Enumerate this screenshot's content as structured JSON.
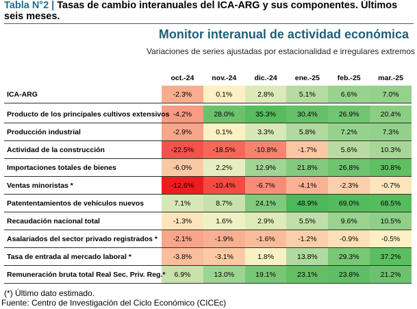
{
  "caption": {
    "label": "Tabla N°2 |",
    "text": "Tasas de cambio interanuales del ICA-ARG y sus componentes. Últimos seis meses."
  },
  "monitor_title": "Monitor interanual de actividad económica",
  "subtitle": "Variaciones de series ajustadas por estacionalidad e irregulares extremos",
  "columns": [
    "oct.-24",
    "nov.-24",
    "dic.-24",
    "ene.-25",
    "feb.-25",
    "mar.-25"
  ],
  "rows": [
    {
      "label": "ICA-ARG",
      "values": [
        "-2.3%",
        "0.1%",
        "2.8%",
        "5.1%",
        "6.6%",
        "7.0%"
      ],
      "colors": [
        "#f8ad8f",
        "#fdf0c4",
        "#dce9b9",
        "#b6dba0",
        "#98d38e",
        "#94d18b"
      ]
    },
    {
      "label": "Producto de los principales cultivos extensivos",
      "values": [
        "-4.2%",
        "28.0%",
        "35.3%",
        "30.4%",
        "26.9%",
        "20.4%"
      ],
      "colors": [
        "#f89b83",
        "#6cc26c",
        "#57bc5e",
        "#66c068",
        "#71c571",
        "#8ccd84"
      ]
    },
    {
      "label": "Producción industrial",
      "values": [
        "-2.9%",
        "0.1%",
        "3.3%",
        "5.8%",
        "7.2%",
        "7.3%"
      ],
      "colors": [
        "#f8a58a",
        "#fdf0c4",
        "#d9e7b7",
        "#b2d99f",
        "#97d28d",
        "#93d18b"
      ]
    },
    {
      "label": "Actividad de la construcción",
      "values": [
        "-22.5%",
        "-18.5%",
        "-10.8%",
        "-1.7%",
        "5.6%",
        "10.3%"
      ],
      "colors": [
        "#f4524a",
        "#f56959",
        "#f7836e",
        "#fcc7a2",
        "#b7dba0",
        "#a8d697"
      ]
    },
    {
      "label": "Importaciones totales de bienes",
      "values": [
        "-6.0%",
        "2.2%",
        "12.9%",
        "21.8%",
        "26.8%",
        "30.8%"
      ],
      "colors": [
        "#f9c9a6",
        "#e7edc0",
        "#a2d494",
        "#83ca7e",
        "#6fc470",
        "#5fbf63"
      ]
    },
    {
      "label": "Ventas minoristas *",
      "values": [
        "-12.6%",
        "-10.4%",
        "-6.7%",
        "-4.1%",
        "-2.3%",
        "-0.7%"
      ],
      "colors": [
        "#ee1d1d",
        "#f34a42",
        "#f78d78",
        "#f9b293",
        "#fbcfac",
        "#fde5bb"
      ]
    },
    {
      "label": "Patententamientos de vehículos nuevos",
      "values": [
        "7.1%",
        "8.7%",
        "24.1%",
        "48.9%",
        "69.0%",
        "68.5%"
      ],
      "colors": [
        "#d8e7b6",
        "#c8e1ab",
        "#81ca7d",
        "#4bb85a",
        "#54bb5d",
        "#55bc5e"
      ]
    },
    {
      "label": "Recaudación nacional total",
      "values": [
        "-1.3%",
        "1.6%",
        "2.9%",
        "5.5%",
        "9.6%",
        "10.5%"
      ],
      "colors": [
        "#fde4bb",
        "#eef1c3",
        "#dfeab9",
        "#c0dea7",
        "#99d38e",
        "#90cf88"
      ]
    },
    {
      "label": "Asalariados del sector privado registrados *",
      "values": [
        "-2.1%",
        "-1.9%",
        "-1.6%",
        "-1.2%",
        "-0.9%",
        "-0.5%"
      ],
      "colors": [
        "#f8a58a",
        "#f9b092",
        "#fabd9c",
        "#fbcfab",
        "#fde0b8",
        "#fdf0c4"
      ]
    },
    {
      "label": "Tasa de entrada al mercado laboral *",
      "values": [
        "-3.8%",
        "-3.1%",
        "1.8%",
        "13.8%",
        "29.3%",
        "37.2%"
      ],
      "colors": [
        "#f9be9c",
        "#fbcaa5",
        "#f7f1c4",
        "#b1da9e",
        "#79c876",
        "#5cbe60"
      ]
    },
    {
      "label": "Remuneración bruta total Real Sec. Priv. Reg.*",
      "values": [
        "6.9%",
        "13.0%",
        "19.1%",
        "23.1%",
        "23.8%",
        "21.2%"
      ],
      "colors": [
        "#c9e1ab",
        "#9cd491",
        "#78c776",
        "#63bf66",
        "#5fbe63",
        "#6cc26c"
      ]
    }
  ],
  "footnote": "(*) Último dato estimado.",
  "source": "Fuente: Centro de Investigación del Ciclo Económico (CICEc)"
}
